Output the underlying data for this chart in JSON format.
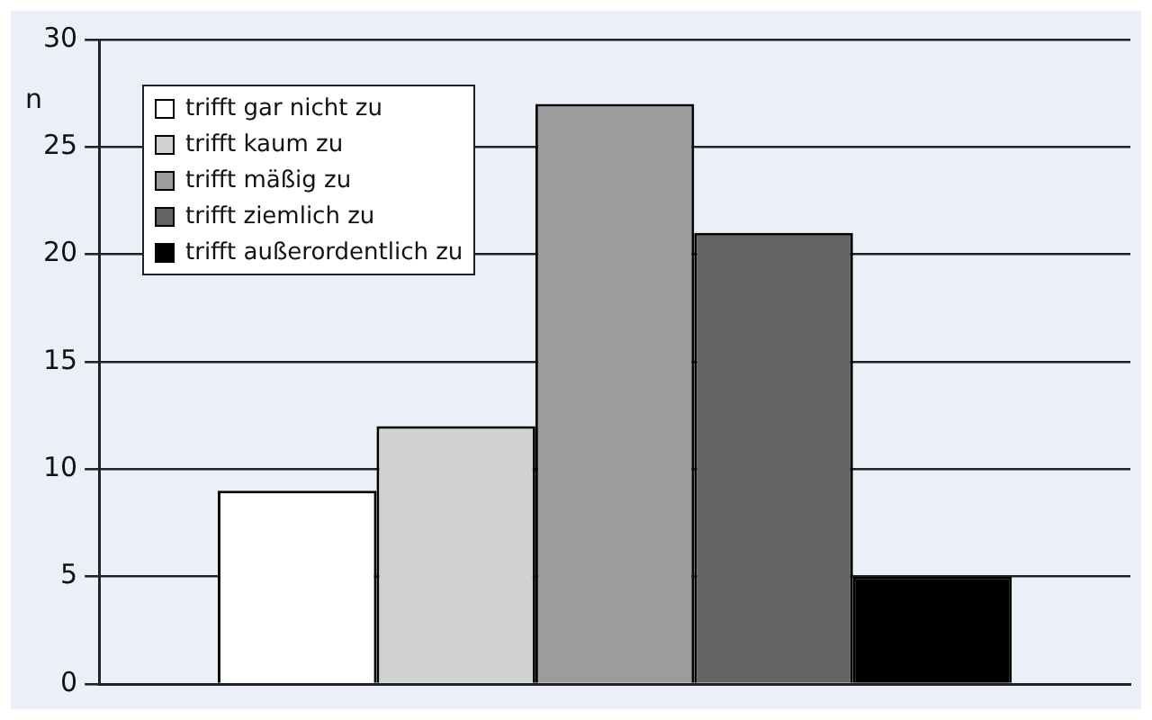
{
  "chart_data": {
    "type": "bar",
    "ylabel": "n",
    "categories": [
      null
    ],
    "series": [
      {
        "name": "trifft gar nicht zu",
        "color": "#ffffff",
        "values": [
          9
        ]
      },
      {
        "name": "trifft kaum zu",
        "color": "#d0d2d1",
        "values": [
          12
        ]
      },
      {
        "name": "trifft mäßig zu",
        "color": "#9c9c9c",
        "values": [
          27
        ]
      },
      {
        "name": "trifft ziemlich zu",
        "color": "#636363",
        "values": [
          21
        ]
      },
      {
        "name": "trifft außerordentlich zu",
        "color": "#000000",
        "values": [
          5
        ]
      }
    ],
    "ylim": [
      0,
      30
    ],
    "yticks": [
      0,
      5,
      10,
      15,
      20,
      25,
      30
    ],
    "grid": "y",
    "legend": "top left"
  }
}
